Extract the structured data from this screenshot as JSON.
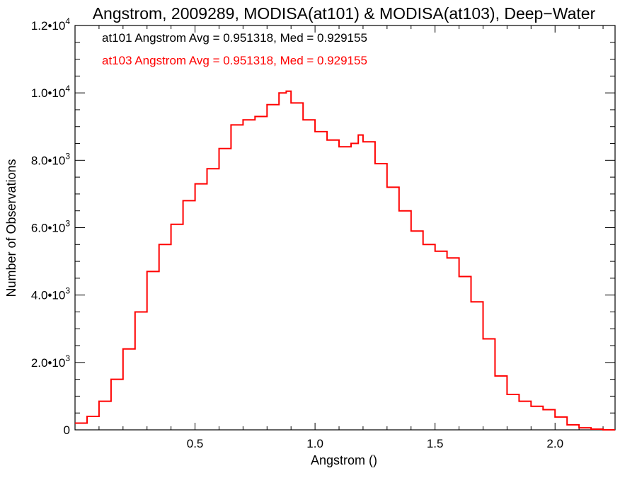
{
  "chart_data": {
    "type": "line",
    "style": "histogram-step",
    "title": "Angstrom, 2009289, MODISA(at101) & MODISA(at103), Deep−Water",
    "xlabel": "Angstrom ()",
    "ylabel": "Number of Observations",
    "xlim": [
      0.0,
      2.25
    ],
    "ylim": [
      0,
      12000
    ],
    "grid": false,
    "x_ticks": [
      {
        "value": 0.5,
        "label": "0.5"
      },
      {
        "value": 1.0,
        "label": "1.0"
      },
      {
        "value": 1.5,
        "label": "1.5"
      },
      {
        "value": 2.0,
        "label": "2.0"
      }
    ],
    "y_ticks": [
      {
        "value": 0,
        "mant": "0",
        "exp": ""
      },
      {
        "value": 2000,
        "mant": "2.0•10",
        "exp": "3"
      },
      {
        "value": 4000,
        "mant": "4.0•10",
        "exp": "3"
      },
      {
        "value": 6000,
        "mant": "6.0•10",
        "exp": "3"
      },
      {
        "value": 8000,
        "mant": "8.0•10",
        "exp": "3"
      },
      {
        "value": 10000,
        "mant": "1.0•10",
        "exp": "4"
      },
      {
        "value": 12000,
        "mant": "1.2•10",
        "exp": "4"
      }
    ],
    "annotations": [
      {
        "text": "at101 Angstrom Avg = 0.951318, Med = 0.929155",
        "color": "#000000"
      },
      {
        "text": "at103 Angstrom Avg = 0.951318, Med = 0.929155",
        "color": "#ff0000"
      }
    ],
    "series": [
      {
        "color": "#ff0000",
        "points": [
          [
            0.0,
            200
          ],
          [
            0.05,
            400
          ],
          [
            0.1,
            850
          ],
          [
            0.15,
            1500
          ],
          [
            0.2,
            2400
          ],
          [
            0.25,
            3500
          ],
          [
            0.3,
            4700
          ],
          [
            0.35,
            5500
          ],
          [
            0.4,
            6100
          ],
          [
            0.45,
            6800
          ],
          [
            0.5,
            7300
          ],
          [
            0.55,
            7750
          ],
          [
            0.6,
            8350
          ],
          [
            0.65,
            9050
          ],
          [
            0.7,
            9200
          ],
          [
            0.75,
            9300
          ],
          [
            0.8,
            9650
          ],
          [
            0.85,
            10000
          ],
          [
            0.88,
            10050
          ],
          [
            0.9,
            9700
          ],
          [
            0.95,
            9200
          ],
          [
            1.0,
            8850
          ],
          [
            1.05,
            8600
          ],
          [
            1.1,
            8400
          ],
          [
            1.15,
            8500
          ],
          [
            1.18,
            8750
          ],
          [
            1.2,
            8550
          ],
          [
            1.25,
            7900
          ],
          [
            1.3,
            7200
          ],
          [
            1.35,
            6500
          ],
          [
            1.4,
            5900
          ],
          [
            1.45,
            5500
          ],
          [
            1.5,
            5300
          ],
          [
            1.55,
            5100
          ],
          [
            1.6,
            4550
          ],
          [
            1.65,
            3800
          ],
          [
            1.7,
            2700
          ],
          [
            1.75,
            1600
          ],
          [
            1.8,
            1050
          ],
          [
            1.85,
            850
          ],
          [
            1.9,
            700
          ],
          [
            1.95,
            600
          ],
          [
            2.0,
            380
          ],
          [
            2.05,
            150
          ],
          [
            2.1,
            60
          ],
          [
            2.15,
            20
          ],
          [
            2.2,
            0
          ],
          [
            2.25,
            0
          ]
        ]
      }
    ]
  }
}
